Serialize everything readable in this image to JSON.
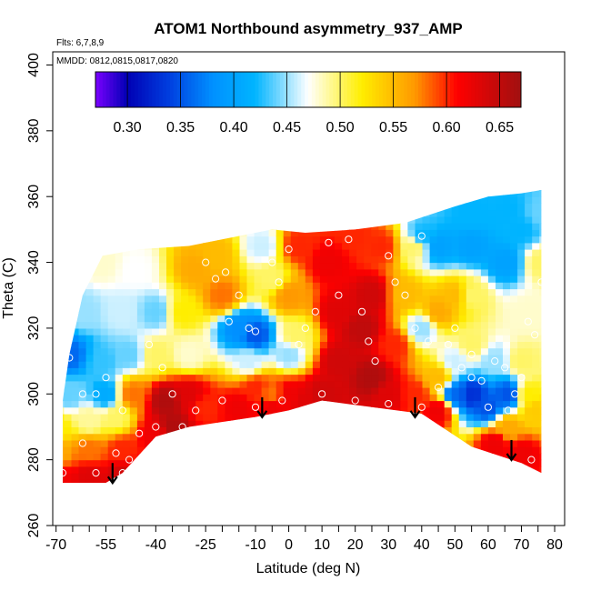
{
  "chart_data": {
    "type": "heatmap",
    "title": "ATOM1 Northbound asymmetry_937_AMP",
    "annotations": [
      "Flts: 6,7,8,9",
      "MMDD: 0812,0815,0817,0820"
    ],
    "xlabel": "Latitude (deg N)",
    "ylabel": "Theta (C)",
    "xlim": [
      -71,
      83
    ],
    "ylim": [
      260,
      404
    ],
    "x_ticks": [
      -70,
      -55,
      -40,
      -25,
      -10,
      0,
      10,
      20,
      30,
      40,
      50,
      60,
      70,
      80
    ],
    "x_tick_labels": [
      "-70",
      "-55",
      "-40",
      "-25",
      "-10",
      "0",
      "10",
      "20",
      "30",
      "40",
      "50",
      "60",
      "70",
      "80"
    ],
    "x_minor_ticks": [
      -65,
      -60,
      -50,
      -45,
      -35,
      -30,
      -20,
      -15,
      -5,
      5,
      15,
      25,
      35,
      45,
      55,
      65,
      75
    ],
    "y_ticks": [
      260,
      280,
      300,
      320,
      340,
      360,
      380,
      400
    ],
    "y_tick_labels": [
      "260",
      "280",
      "300",
      "320",
      "340",
      "360",
      "380",
      "400"
    ],
    "colorbar": {
      "min": 0.27,
      "max": 0.67,
      "ticks": [
        0.3,
        0.35,
        0.4,
        0.45,
        0.5,
        0.55,
        0.6,
        0.65
      ],
      "tick_labels": [
        "0.30",
        "0.35",
        "0.40",
        "0.45",
        "0.50",
        "0.55",
        "0.60",
        "0.65"
      ],
      "stops": [
        {
          "v": 0.27,
          "c": "#7a00ff"
        },
        {
          "v": 0.3,
          "c": "#0000b4"
        },
        {
          "v": 0.34,
          "c": "#0040e0"
        },
        {
          "v": 0.38,
          "c": "#0090ff"
        },
        {
          "v": 0.42,
          "c": "#00b4ff"
        },
        {
          "v": 0.47,
          "c": "#ffffff"
        },
        {
          "v": 0.52,
          "c": "#ffee00"
        },
        {
          "v": 0.57,
          "c": "#ff9900"
        },
        {
          "v": 0.61,
          "c": "#ff0000"
        },
        {
          "v": 0.67,
          "c": "#a01010"
        }
      ]
    },
    "boundary": {
      "top": [
        [
          -68,
          298
        ],
        [
          -66,
          312
        ],
        [
          -62,
          330
        ],
        [
          -56,
          342
        ],
        [
          -45,
          344
        ],
        [
          -30,
          345
        ],
        [
          -15,
          348
        ],
        [
          -5,
          350
        ],
        [
          5,
          349
        ],
        [
          20,
          350
        ],
        [
          35,
          352
        ],
        [
          50,
          357
        ],
        [
          60,
          360
        ],
        [
          70,
          361
        ],
        [
          76,
          362
        ]
      ],
      "bottom": [
        [
          76,
          276
        ],
        [
          70,
          279
        ],
        [
          55,
          284
        ],
        [
          40,
          294
        ],
        [
          25,
          296
        ],
        [
          10,
          298
        ],
        [
          0,
          295
        ],
        [
          -10,
          293
        ],
        [
          -30,
          290
        ],
        [
          -40,
          287
        ],
        [
          -50,
          276
        ],
        [
          -55,
          273
        ],
        [
          -60,
          273
        ],
        [
          -68,
          273
        ]
      ]
    },
    "field_points": [
      {
        "x": -70,
        "y": 275,
        "v": 0.62
      },
      {
        "x": -60,
        "y": 275,
        "v": 0.63
      },
      {
        "x": -50,
        "y": 275,
        "v": 0.64
      },
      {
        "x": -70,
        "y": 282,
        "v": 0.56
      },
      {
        "x": -60,
        "y": 283,
        "v": 0.58
      },
      {
        "x": -50,
        "y": 283,
        "v": 0.6
      },
      {
        "x": -70,
        "y": 290,
        "v": 0.52
      },
      {
        "x": -60,
        "y": 292,
        "v": 0.49
      },
      {
        "x": -52,
        "y": 293,
        "v": 0.5
      },
      {
        "x": -66,
        "y": 300,
        "v": 0.44
      },
      {
        "x": -55,
        "y": 300,
        "v": 0.41
      },
      {
        "x": -47,
        "y": 300,
        "v": 0.58
      },
      {
        "x": -66,
        "y": 312,
        "v": 0.36
      },
      {
        "x": -56,
        "y": 310,
        "v": 0.43
      },
      {
        "x": -48,
        "y": 312,
        "v": 0.44
      },
      {
        "x": -62,
        "y": 325,
        "v": 0.45
      },
      {
        "x": -50,
        "y": 325,
        "v": 0.46
      },
      {
        "x": -40,
        "y": 325,
        "v": 0.44
      },
      {
        "x": -56,
        "y": 340,
        "v": 0.48
      },
      {
        "x": -46,
        "y": 338,
        "v": 0.47
      },
      {
        "x": -40,
        "y": 312,
        "v": 0.5
      },
      {
        "x": -37,
        "y": 298,
        "v": 0.66
      },
      {
        "x": -35,
        "y": 290,
        "v": 0.66
      },
      {
        "x": -30,
        "y": 300,
        "v": 0.63
      },
      {
        "x": -40,
        "y": 288,
        "v": 0.62
      },
      {
        "x": -25,
        "y": 296,
        "v": 0.6
      },
      {
        "x": -30,
        "y": 312,
        "v": 0.48
      },
      {
        "x": -32,
        "y": 325,
        "v": 0.52
      },
      {
        "x": -28,
        "y": 338,
        "v": 0.56
      },
      {
        "x": -22,
        "y": 342,
        "v": 0.55
      },
      {
        "x": -20,
        "y": 330,
        "v": 0.58
      },
      {
        "x": -15,
        "y": 320,
        "v": 0.38
      },
      {
        "x": -10,
        "y": 318,
        "v": 0.35
      },
      {
        "x": -12,
        "y": 310,
        "v": 0.46
      },
      {
        "x": -10,
        "y": 302,
        "v": 0.6
      },
      {
        "x": -5,
        "y": 300,
        "v": 0.58
      },
      {
        "x": -15,
        "y": 296,
        "v": 0.62
      },
      {
        "x": -5,
        "y": 296,
        "v": 0.62
      },
      {
        "x": -8,
        "y": 345,
        "v": 0.46
      },
      {
        "x": -5,
        "y": 335,
        "v": 0.5
      },
      {
        "x": 0,
        "y": 312,
        "v": 0.45
      },
      {
        "x": 2,
        "y": 318,
        "v": 0.5
      },
      {
        "x": 0,
        "y": 330,
        "v": 0.57
      },
      {
        "x": 3,
        "y": 345,
        "v": 0.6
      },
      {
        "x": 0,
        "y": 300,
        "v": 0.62
      },
      {
        "x": 5,
        "y": 298,
        "v": 0.63
      },
      {
        "x": 10,
        "y": 300,
        "v": 0.64
      },
      {
        "x": 15,
        "y": 310,
        "v": 0.64
      },
      {
        "x": 15,
        "y": 325,
        "v": 0.63
      },
      {
        "x": 12,
        "y": 340,
        "v": 0.62
      },
      {
        "x": 20,
        "y": 348,
        "v": 0.6
      },
      {
        "x": 22,
        "y": 320,
        "v": 0.65
      },
      {
        "x": 25,
        "y": 305,
        "v": 0.66
      },
      {
        "x": 25,
        "y": 330,
        "v": 0.64
      },
      {
        "x": 28,
        "y": 345,
        "v": 0.6
      },
      {
        "x": 30,
        "y": 300,
        "v": 0.63
      },
      {
        "x": 32,
        "y": 315,
        "v": 0.6
      },
      {
        "x": 35,
        "y": 330,
        "v": 0.55
      },
      {
        "x": 38,
        "y": 345,
        "v": 0.5
      },
      {
        "x": 40,
        "y": 348,
        "v": 0.42
      },
      {
        "x": 45,
        "y": 345,
        "v": 0.4
      },
      {
        "x": 40,
        "y": 320,
        "v": 0.45
      },
      {
        "x": 38,
        "y": 300,
        "v": 0.6
      },
      {
        "x": 45,
        "y": 305,
        "v": 0.55
      },
      {
        "x": 45,
        "y": 295,
        "v": 0.62
      },
      {
        "x": 50,
        "y": 300,
        "v": 0.36
      },
      {
        "x": 55,
        "y": 300,
        "v": 0.33
      },
      {
        "x": 60,
        "y": 296,
        "v": 0.35
      },
      {
        "x": 50,
        "y": 310,
        "v": 0.46
      },
      {
        "x": 55,
        "y": 315,
        "v": 0.5
      },
      {
        "x": 62,
        "y": 310,
        "v": 0.45
      },
      {
        "x": 50,
        "y": 330,
        "v": 0.55
      },
      {
        "x": 45,
        "y": 325,
        "v": 0.56
      },
      {
        "x": 55,
        "y": 330,
        "v": 0.5
      },
      {
        "x": 55,
        "y": 345,
        "v": 0.4
      },
      {
        "x": 65,
        "y": 340,
        "v": 0.4
      },
      {
        "x": 70,
        "y": 350,
        "v": 0.42
      },
      {
        "x": 72,
        "y": 325,
        "v": 0.48
      },
      {
        "x": 70,
        "y": 310,
        "v": 0.5
      },
      {
        "x": 72,
        "y": 300,
        "v": 0.52
      },
      {
        "x": 66,
        "y": 290,
        "v": 0.56
      },
      {
        "x": 62,
        "y": 285,
        "v": 0.62
      },
      {
        "x": 70,
        "y": 282,
        "v": 0.62
      },
      {
        "x": 74,
        "y": 295,
        "v": 0.54
      },
      {
        "x": 76,
        "y": 340,
        "v": 0.5
      },
      {
        "x": 76,
        "y": 355,
        "v": 0.44
      },
      {
        "x": 66,
        "y": 356,
        "v": 0.42
      },
      {
        "x": 55,
        "y": 355,
        "v": 0.42
      },
      {
        "x": 66,
        "y": 300,
        "v": 0.35
      }
    ],
    "samples": [
      [
        -55,
        305
      ],
      [
        -62,
        300
      ],
      [
        -66,
        311
      ],
      [
        -62,
        285
      ],
      [
        -58,
        300
      ],
      [
        -50,
        295
      ],
      [
        -50,
        276
      ],
      [
        -48,
        280
      ],
      [
        -42,
        315
      ],
      [
        -38,
        308
      ],
      [
        -45,
        288
      ],
      [
        -32,
        290
      ],
      [
        -28,
        295
      ],
      [
        -25,
        340
      ],
      [
        -22,
        335
      ],
      [
        -19,
        337
      ],
      [
        -18,
        322
      ],
      [
        -15,
        330
      ],
      [
        -12,
        320
      ],
      [
        -10,
        319
      ],
      [
        -5,
        340
      ],
      [
        -3,
        334
      ],
      [
        0,
        344
      ],
      [
        3,
        315
      ],
      [
        5,
        320
      ],
      [
        8,
        325
      ],
      [
        12,
        346
      ],
      [
        15,
        330
      ],
      [
        18,
        347
      ],
      [
        22,
        325
      ],
      [
        24,
        316
      ],
      [
        26,
        310
      ],
      [
        30,
        342
      ],
      [
        32,
        334
      ],
      [
        35,
        330
      ],
      [
        38,
        320
      ],
      [
        40,
        348
      ],
      [
        42,
        316
      ],
      [
        45,
        302
      ],
      [
        48,
        315
      ],
      [
        50,
        320
      ],
      [
        52,
        308
      ],
      [
        55,
        312
      ],
      [
        58,
        304
      ],
      [
        62,
        310
      ],
      [
        65,
        308
      ],
      [
        66,
        295
      ],
      [
        68,
        300
      ],
      [
        70,
        305
      ],
      [
        72,
        322
      ],
      [
        74,
        318
      ],
      [
        76,
        334
      ],
      [
        78,
        340
      ],
      [
        -68,
        276
      ],
      [
        -58,
        276
      ],
      [
        -52,
        282
      ],
      [
        -40,
        290
      ],
      [
        -35,
        300
      ],
      [
        -20,
        298
      ],
      [
        -10,
        296
      ],
      [
        -2,
        298
      ],
      [
        10,
        300
      ],
      [
        20,
        298
      ],
      [
        30,
        297
      ],
      [
        40,
        296
      ],
      [
        55,
        305
      ],
      [
        60,
        296
      ],
      [
        73,
        280
      ]
    ],
    "arrows": [
      [
        -53,
        279
      ],
      [
        -8,
        299
      ],
      [
        38,
        299
      ],
      [
        67,
        286
      ]
    ]
  }
}
